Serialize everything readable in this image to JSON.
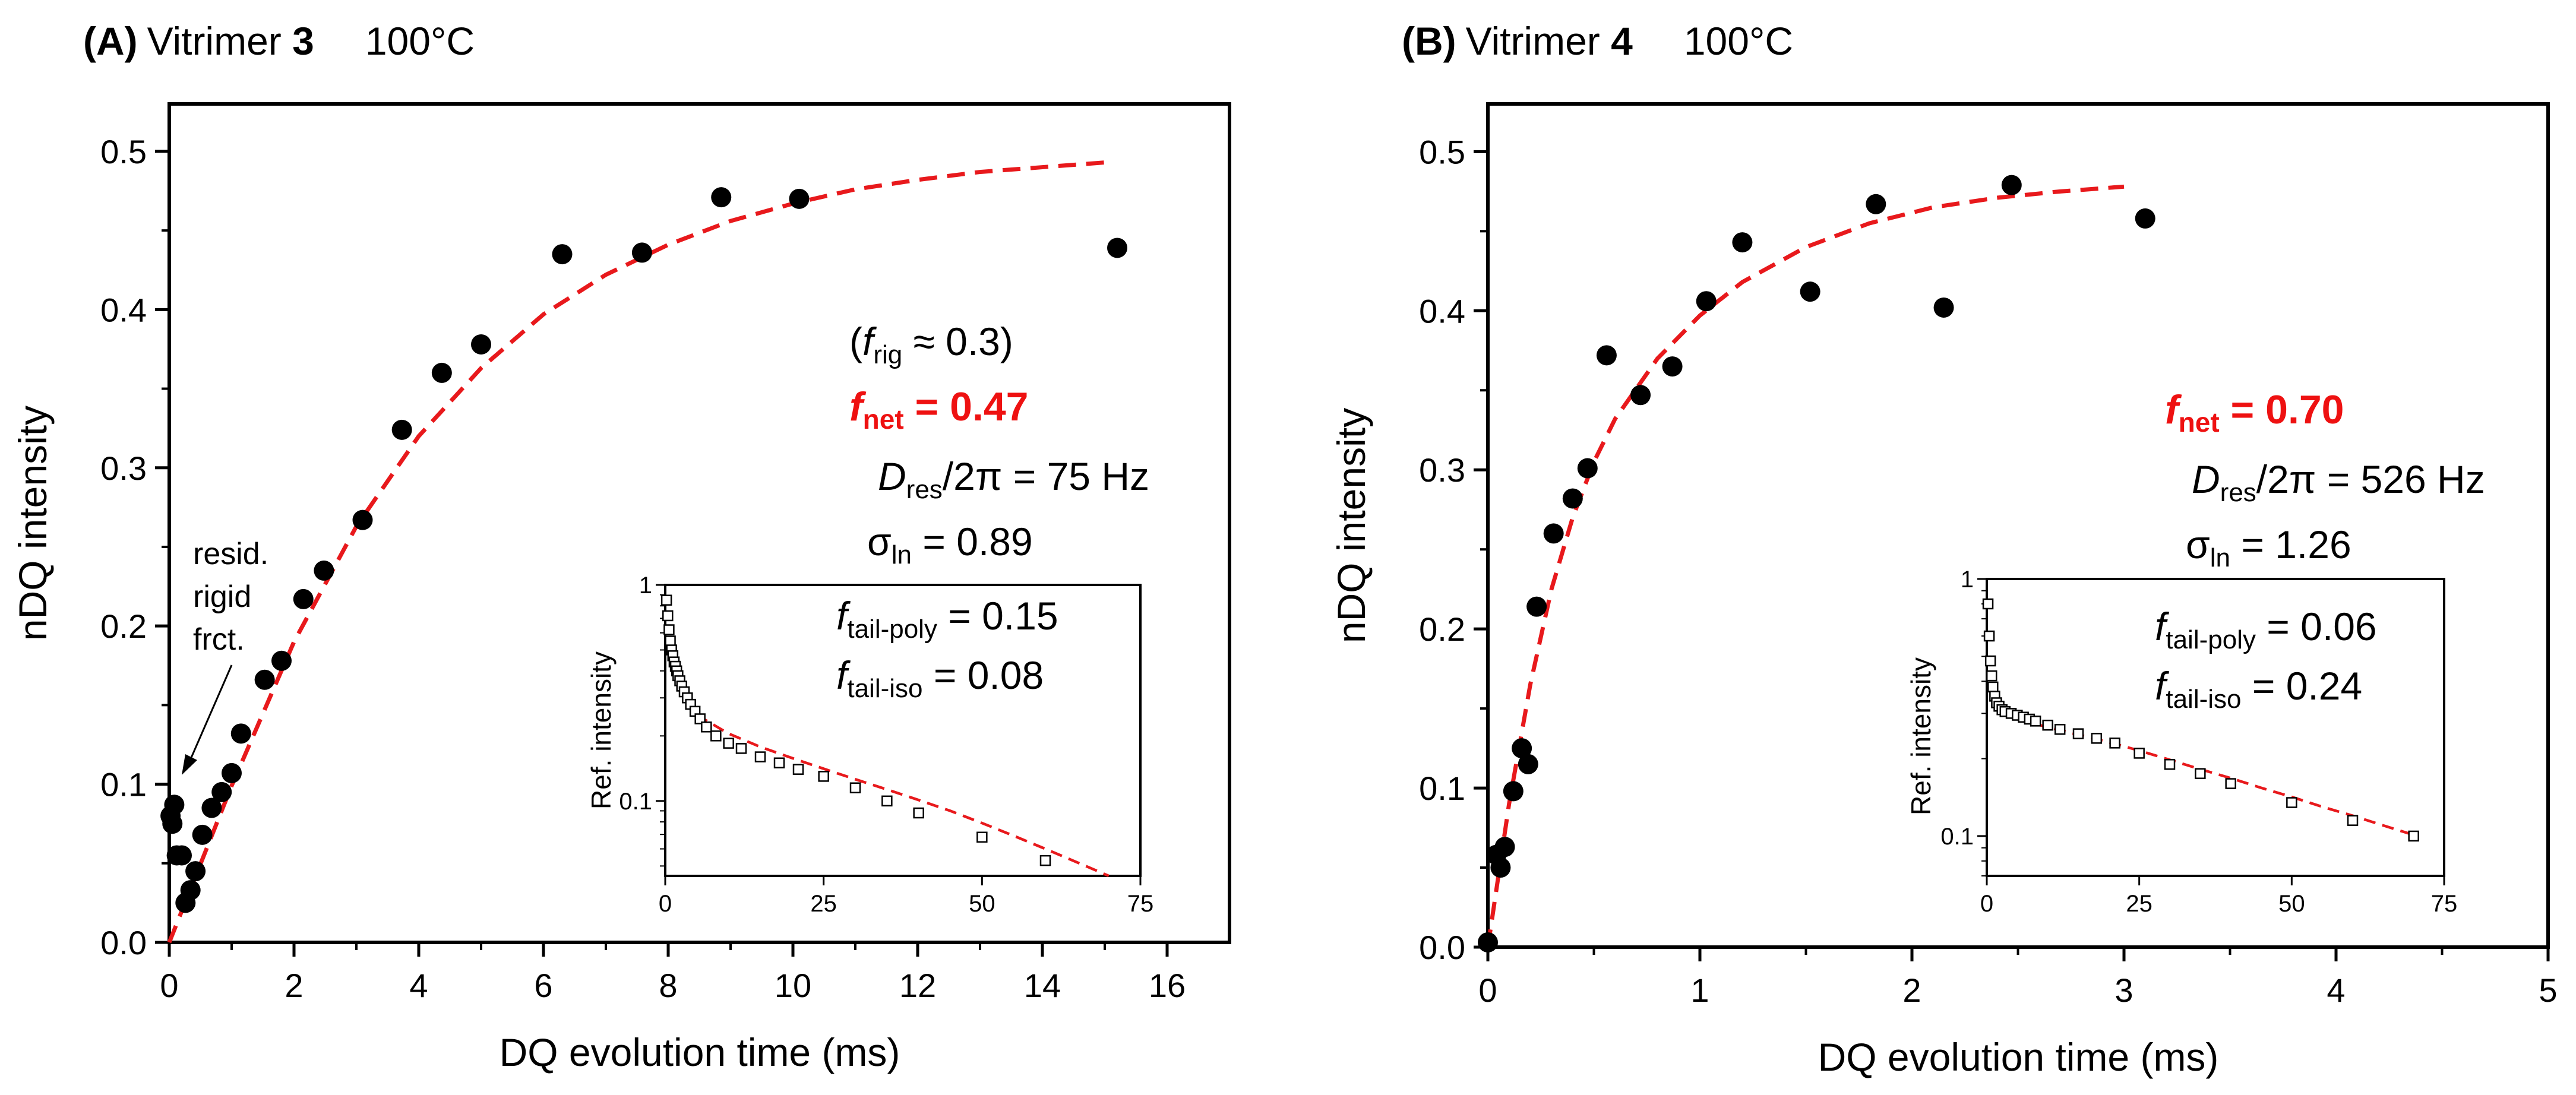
{
  "chart_data": [
    {
      "type": "scatter",
      "panel_label": "(A)",
      "title_prefix": "Vitrimer ",
      "title_bold": "3",
      "temperature": "100°C",
      "xlabel": "DQ evolution time (ms)",
      "ylabel": "nDQ intensity",
      "xlim": [
        0,
        17
      ],
      "ylim": [
        0,
        0.53
      ],
      "xticks": [
        0,
        2,
        4,
        6,
        8,
        10,
        12,
        14,
        16
      ],
      "yticks": [
        0.0,
        0.1,
        0.2,
        0.3,
        0.4,
        0.5
      ],
      "series": [
        {
          "name": "nDQ data",
          "style": "filled-circle",
          "x": [
            0.02,
            0.05,
            0.08,
            0.12,
            0.2,
            0.26,
            0.34,
            0.42,
            0.53,
            0.68,
            0.84,
            1.0,
            1.15,
            1.53,
            1.8,
            2.15,
            2.48,
            3.1,
            3.73,
            4.37,
            5.0,
            6.3,
            7.58,
            8.85,
            10.1,
            15.2
          ],
          "y": [
            0.08,
            0.075,
            0.087,
            0.055,
            0.055,
            0.025,
            0.033,
            0.045,
            0.068,
            0.085,
            0.095,
            0.107,
            0.132,
            0.166,
            0.178,
            0.217,
            0.235,
            0.267,
            0.324,
            0.36,
            0.378,
            0.435,
            0.436,
            0.471,
            0.47,
            0.439
          ]
        },
        {
          "name": "fit",
          "style": "red-dashed",
          "x": [
            0,
            1,
            2,
            3,
            4,
            5,
            6,
            7,
            8,
            9,
            10,
            11,
            12,
            13,
            14,
            15
          ],
          "y": [
            0.0,
            0.099,
            0.19,
            0.263,
            0.32,
            0.363,
            0.397,
            0.422,
            0.441,
            0.456,
            0.467,
            0.476,
            0.482,
            0.487,
            0.49,
            0.493
          ]
        }
      ],
      "annotations": {
        "f_rig": {
          "open": "(",
          "symbol": "f",
          "subscript": "rig",
          "rest": " ≈ 0.3)"
        },
        "f_net": {
          "symbol": "f",
          "subscript": "net",
          "rest": " = 0.47"
        },
        "d_res": {
          "symbol": "D",
          "subscript": "res",
          "rest": "/2π = 75 Hz"
        },
        "sigma": {
          "symbol": "σ",
          "subscript": "ln",
          "rest": " = 0.89"
        },
        "arrow_label": [
          "resid.",
          "rigid",
          "frct."
        ]
      },
      "inset": {
        "ylabel": "Ref. intensity",
        "xlim": [
          0,
          75
        ],
        "xticks": [
          0,
          25,
          50,
          75
        ],
        "ylim_log": [
          0.045,
          1
        ],
        "ytick_labels": [
          "1",
          "0.1"
        ],
        "yticks": [
          1,
          0.1
        ],
        "series": [
          {
            "name": "ref data",
            "style": "open-square",
            "x": [
              0.2,
              0.4,
              0.6,
              0.8,
              1.0,
              1.2,
              1.4,
              1.6,
              1.8,
              2.0,
              2.3,
              2.6,
              3.0,
              3.5,
              4.0,
              4.7,
              5.5,
              6.5,
              8,
              10,
              12,
              15,
              18,
              21,
              25,
              30,
              35,
              40,
              50,
              60
            ],
            "y": [
              0.85,
              0.72,
              0.62,
              0.55,
              0.5,
              0.47,
              0.44,
              0.42,
              0.4,
              0.38,
              0.36,
              0.34,
              0.32,
              0.3,
              0.28,
              0.26,
              0.24,
              0.22,
              0.2,
              0.185,
              0.175,
              0.16,
              0.15,
              0.14,
              0.13,
              0.115,
              0.1,
              0.088,
              0.068,
              0.053
            ]
          },
          {
            "name": "tail fit",
            "style": "red-dashed",
            "x": [
              5,
              10,
              15,
              20,
              25,
              30,
              35,
              40,
              45,
              50,
              55,
              60,
              65,
              70
            ],
            "y": [
              0.25,
              0.205,
              0.178,
              0.158,
              0.141,
              0.126,
              0.113,
              0.101,
              0.09,
              0.079,
              0.069,
              0.06,
              0.052,
              0.045
            ]
          }
        ],
        "annotations": {
          "f_tail_poly": {
            "symbol": "f",
            "subscript": "tail-poly",
            "rest": " = 0.15"
          },
          "f_tail_iso": {
            "symbol": "f",
            "subscript": "tail-iso",
            "rest": " = 0.08"
          }
        }
      }
    },
    {
      "type": "scatter",
      "panel_label": "(B)",
      "title_prefix": "Vitrimer ",
      "title_bold": "4",
      "temperature": "100°C",
      "xlabel": "DQ evolution time (ms)",
      "ylabel": "nDQ intensity",
      "xlim": [
        0,
        5
      ],
      "ylim": [
        0,
        0.53
      ],
      "xticks": [
        0,
        1,
        2,
        3,
        4,
        5
      ],
      "yticks": [
        0.0,
        0.1,
        0.2,
        0.3,
        0.4,
        0.5
      ],
      "series": [
        {
          "name": "nDQ data",
          "style": "filled-circle",
          "x": [
            0.0,
            0.04,
            0.06,
            0.08,
            0.12,
            0.16,
            0.19,
            0.23,
            0.31,
            0.4,
            0.47,
            0.56,
            0.72,
            0.87,
            1.03,
            1.2,
            1.52,
            1.83,
            2.15,
            2.47,
            3.1
          ],
          "y": [
            0.003,
            0.058,
            0.05,
            0.063,
            0.098,
            0.125,
            0.115,
            0.214,
            0.26,
            0.282,
            0.301,
            0.372,
            0.347,
            0.365,
            0.406,
            0.443,
            0.412,
            0.467,
            0.402,
            0.479,
            0.458
          ]
        },
        {
          "name": "fit",
          "style": "red-dashed",
          "x": [
            0,
            0.1,
            0.2,
            0.3,
            0.4,
            0.5,
            0.6,
            0.8,
            1.0,
            1.2,
            1.5,
            1.8,
            2.1,
            2.4,
            2.7,
            3.0
          ],
          "y": [
            0.0,
            0.09,
            0.165,
            0.225,
            0.27,
            0.305,
            0.332,
            0.37,
            0.397,
            0.418,
            0.44,
            0.455,
            0.465,
            0.471,
            0.475,
            0.478
          ]
        }
      ],
      "annotations": {
        "f_net": {
          "symbol": "f",
          "subscript": "net",
          "rest": " = 0.70"
        },
        "d_res": {
          "symbol": "D",
          "subscript": "res",
          "rest": "/2π = 526 Hz"
        },
        "sigma": {
          "symbol": "σ",
          "subscript": "ln",
          "rest": " = 1.26"
        }
      },
      "inset": {
        "ylabel": "Ref. intensity",
        "xlim": [
          0,
          75
        ],
        "xticks": [
          0,
          25,
          50,
          75
        ],
        "ylim_log": [
          0.07,
          1
        ],
        "ytick_labels": [
          "1",
          "0.1"
        ],
        "yticks": [
          1,
          0.1
        ],
        "series": [
          {
            "name": "ref data",
            "style": "open-square",
            "x": [
              0.2,
              0.4,
              0.6,
              0.8,
              1.0,
              1.3,
              1.6,
              2.0,
              2.5,
              3.0,
              4.0,
              5.0,
              6.0,
              7.0,
              8.0,
              10,
              12,
              15,
              18,
              21,
              25,
              30,
              35,
              40,
              50,
              60,
              70
            ],
            "y": [
              0.8,
              0.6,
              0.48,
              0.42,
              0.38,
              0.35,
              0.33,
              0.32,
              0.31,
              0.305,
              0.3,
              0.295,
              0.29,
              0.285,
              0.28,
              0.27,
              0.26,
              0.25,
              0.24,
              0.23,
              0.21,
              0.19,
              0.175,
              0.16,
              0.135,
              0.115,
              0.1
            ]
          },
          {
            "name": "tail fit",
            "style": "red-dashed",
            "x": [
              5,
              10,
              15,
              20,
              25,
              30,
              35,
              40,
              45,
              50,
              55,
              60,
              65,
              70
            ],
            "y": [
              0.285,
              0.265,
              0.248,
              0.232,
              0.215,
              0.198,
              0.182,
              0.168,
              0.154,
              0.142,
              0.13,
              0.12,
              0.11,
              0.101
            ]
          }
        ],
        "annotations": {
          "f_tail_poly": {
            "symbol": "f",
            "subscript": "tail-poly",
            "rest": " = 0.06"
          },
          "f_tail_iso": {
            "symbol": "f",
            "subscript": "tail-iso",
            "rest": " = 0.24"
          }
        }
      }
    }
  ]
}
